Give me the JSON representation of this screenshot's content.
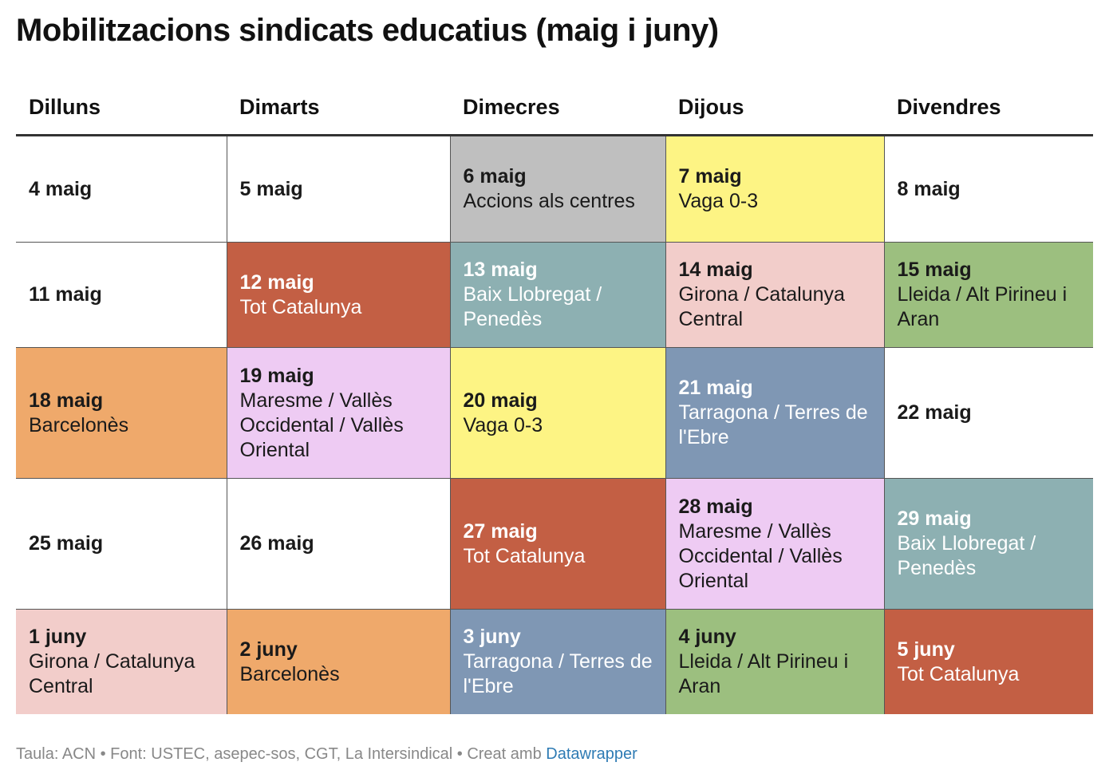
{
  "title": "Mobilitzacions sindicats educatius (maig i juny)",
  "headers": [
    "Dilluns",
    "Dimarts",
    "Dimecres",
    "Dijous",
    "Divendres"
  ],
  "weeks": [
    {
      "cells": [
        {
          "date": "4 maig",
          "desc": "",
          "bg": "#ffffff",
          "text": "#1a1a1a"
        },
        {
          "date": "5 maig",
          "desc": "",
          "bg": "#ffffff",
          "text": "#1a1a1a"
        },
        {
          "date": "6 maig",
          "desc": "Accions als centres",
          "bg": "#bfbfbf",
          "text": "#1a1a1a"
        },
        {
          "date": "7 maig",
          "desc": "Vaga 0-3",
          "bg": "#fdf484",
          "text": "#1a1a1a"
        },
        {
          "date": "8 maig",
          "desc": "",
          "bg": "#ffffff",
          "text": "#1a1a1a"
        }
      ]
    },
    {
      "cells": [
        {
          "date": "11 maig",
          "desc": "",
          "bg": "#ffffff",
          "text": "#1a1a1a"
        },
        {
          "date": "12 maig",
          "desc": "Tot Catalunya",
          "bg": "#c35f44",
          "text": "#ffffff"
        },
        {
          "date": "13 maig",
          "desc": "Baix Llobregat / Penedès",
          "bg": "#8db0b2",
          "text": "#ffffff"
        },
        {
          "date": "14 maig",
          "desc": "Girona / Catalunya Central",
          "bg": "#f2cdca",
          "text": "#1a1a1a"
        },
        {
          "date": "15 maig",
          "desc": "Lleida / Alt Pirineu i Aran",
          "bg": "#9cbf7f",
          "text": "#1a1a1a"
        }
      ]
    },
    {
      "cells": [
        {
          "date": "18 maig",
          "desc": "Barcelonès",
          "bg": "#efa96b",
          "text": "#1a1a1a"
        },
        {
          "date": "19 maig",
          "desc": "Maresme / Vallès Occidental / Vallès Oriental",
          "bg": "#eecbf3",
          "text": "#1a1a1a"
        },
        {
          "date": "20 maig",
          "desc": "Vaga 0-3",
          "bg": "#fdf484",
          "text": "#1a1a1a"
        },
        {
          "date": "21 maig",
          "desc": "Tarragona / Terres de l'Ebre",
          "bg": "#7f97b4",
          "text": "#ffffff"
        },
        {
          "date": "22 maig",
          "desc": "",
          "bg": "#ffffff",
          "text": "#1a1a1a"
        }
      ]
    },
    {
      "cells": [
        {
          "date": "25 maig",
          "desc": "",
          "bg": "#ffffff",
          "text": "#1a1a1a"
        },
        {
          "date": "26 maig",
          "desc": "",
          "bg": "#ffffff",
          "text": "#1a1a1a"
        },
        {
          "date": "27 maig",
          "desc": "Tot Catalunya",
          "bg": "#c35f44",
          "text": "#ffffff"
        },
        {
          "date": "28 maig",
          "desc": "Maresme / Vallès Occidental / Vallès Oriental",
          "bg": "#eecbf3",
          "text": "#1a1a1a"
        },
        {
          "date": "29 maig",
          "desc": "Baix Llobregat / Penedès",
          "bg": "#8db0b2",
          "text": "#ffffff"
        }
      ]
    },
    {
      "cells": [
        {
          "date": "1 juny",
          "desc": "Girona / Catalunya Central",
          "bg": "#f2cdca",
          "text": "#1a1a1a"
        },
        {
          "date": "2 juny",
          "desc": "Barcelonès",
          "bg": "#efa96b",
          "text": "#1a1a1a"
        },
        {
          "date": "3 juny",
          "desc": "Tarragona / Terres de l'Ebre",
          "bg": "#7f97b4",
          "text": "#ffffff"
        },
        {
          "date": "4 juny",
          "desc": "Lleida / Alt Pirineu i Aran",
          "bg": "#9cbf7f",
          "text": "#1a1a1a"
        },
        {
          "date": "5 juny",
          "desc": "Tot Catalunya",
          "bg": "#c35f44",
          "text": "#ffffff"
        }
      ]
    }
  ],
  "footer": {
    "text": "Taula: ACN • Font: USTEC, asepec-sos, CGT, La Intersindical • Creat amb ",
    "link": "Datawrapper",
    "link_color": "#2e7bb4"
  }
}
